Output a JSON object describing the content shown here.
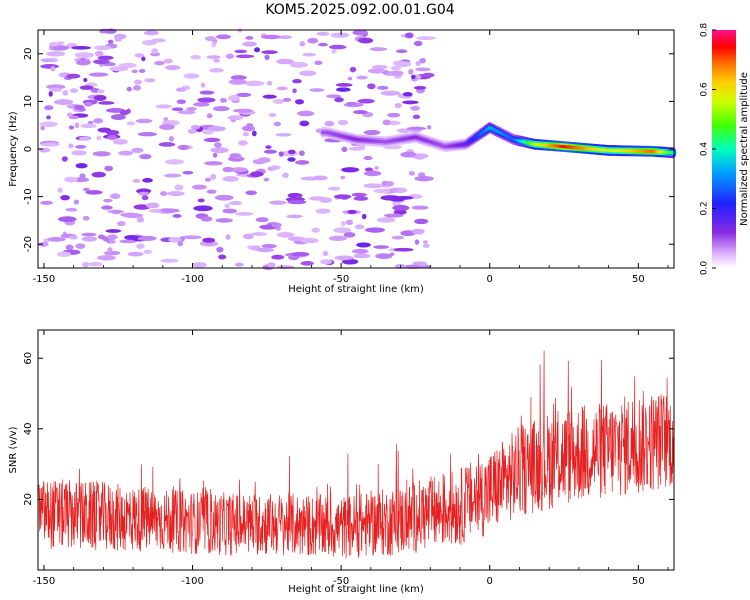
{
  "title": "KOM5.2025.092.00.01.G04",
  "chart_data": [
    {
      "type": "heatmap",
      "name": "spectrogram",
      "xlabel": "Height of straight line (km)",
      "ylabel": "Frequency (Hz)",
      "xlim": [
        -152,
        62
      ],
      "ylim": [
        -25,
        25
      ],
      "xticks": [
        -150,
        -100,
        -50,
        0,
        50
      ],
      "yticks": [
        -20,
        -10,
        0,
        10,
        20
      ],
      "colorbar": {
        "label": "Normalized spectral amplitude",
        "range": [
          0.0,
          0.8
        ],
        "ticks": [
          "0.0",
          "0.2",
          "0.4",
          "0.6",
          "0.8"
        ]
      },
      "ridge": {
        "description_x_km": [
          -55,
          -45,
          -35,
          -25,
          -15,
          -8,
          0,
          8,
          15,
          25,
          40,
          55,
          62
        ],
        "frequency_hz": [
          3.5,
          2.0,
          1.5,
          2.5,
          0.5,
          1.0,
          4.5,
          2.0,
          1.0,
          0.5,
          -0.3,
          -0.5,
          -0.8
        ],
        "amplitude": [
          0.1,
          0.12,
          0.1,
          0.12,
          0.1,
          0.15,
          0.32,
          0.25,
          0.55,
          0.75,
          0.55,
          0.7,
          0.4
        ]
      }
    },
    {
      "type": "line",
      "name": "snr",
      "xlabel": "Height of straight line (km)",
      "ylabel": "SNR (v/v)",
      "xlim": [
        -152,
        62
      ],
      "ylim": [
        0,
        68
      ],
      "xticks": [
        -150,
        -100,
        -50,
        0,
        50
      ],
      "yticks": [
        20,
        40,
        60
      ],
      "series": [
        {
          "name": "SNR",
          "color": "#e62020",
          "x": [
            -150,
            -130,
            -110,
            -90,
            -70,
            -50,
            -30,
            -10,
            0,
            10,
            20,
            30,
            40,
            50,
            60
          ],
          "mean": [
            16,
            15,
            14,
            13,
            13,
            12,
            14,
            18,
            22,
            28,
            31,
            33,
            34,
            36,
            37
          ],
          "spread": [
            10,
            10,
            9,
            9,
            9,
            9,
            10,
            11,
            12,
            13,
            14,
            14,
            14,
            15,
            14
          ]
        }
      ]
    }
  ]
}
